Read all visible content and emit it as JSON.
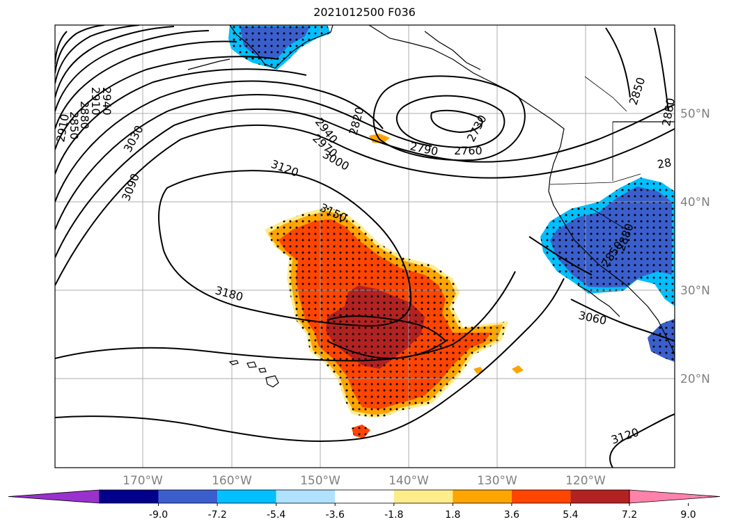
{
  "title": "2021012500 F036",
  "map": {
    "lat_labels": [
      "50°N",
      "40°N",
      "30°N",
      "20°N"
    ],
    "lon_labels": [
      "170°W",
      "160°W",
      "150°W",
      "140°W",
      "130°W",
      "120°W"
    ],
    "contour_labels": [
      "2940",
      "2910",
      "2880",
      "2850",
      "2820",
      "2790",
      "2760",
      "2730",
      "2940",
      "2970",
      "3000",
      "3030",
      "3090",
      "3120",
      "3150",
      "3180",
      "3060",
      "3120",
      "2850",
      "2880",
      "28",
      "2850",
      "2880",
      "2910"
    ],
    "stippling": "dotted significance region"
  },
  "colorbar": {
    "ticks": [
      "-9.0",
      "-7.2",
      "-5.4",
      "-3.6",
      "-1.8",
      "1.8",
      "3.6",
      "5.4",
      "7.2",
      "9.0"
    ],
    "colors": [
      "#9932CC",
      "#00008B",
      "#3A5FCD",
      "#00BFFF",
      "#B0E2FF",
      "#FFFFFF",
      "#FFEC8B",
      "#FFA500",
      "#FF4500",
      "#B22222",
      "#FF82AB"
    ]
  }
}
